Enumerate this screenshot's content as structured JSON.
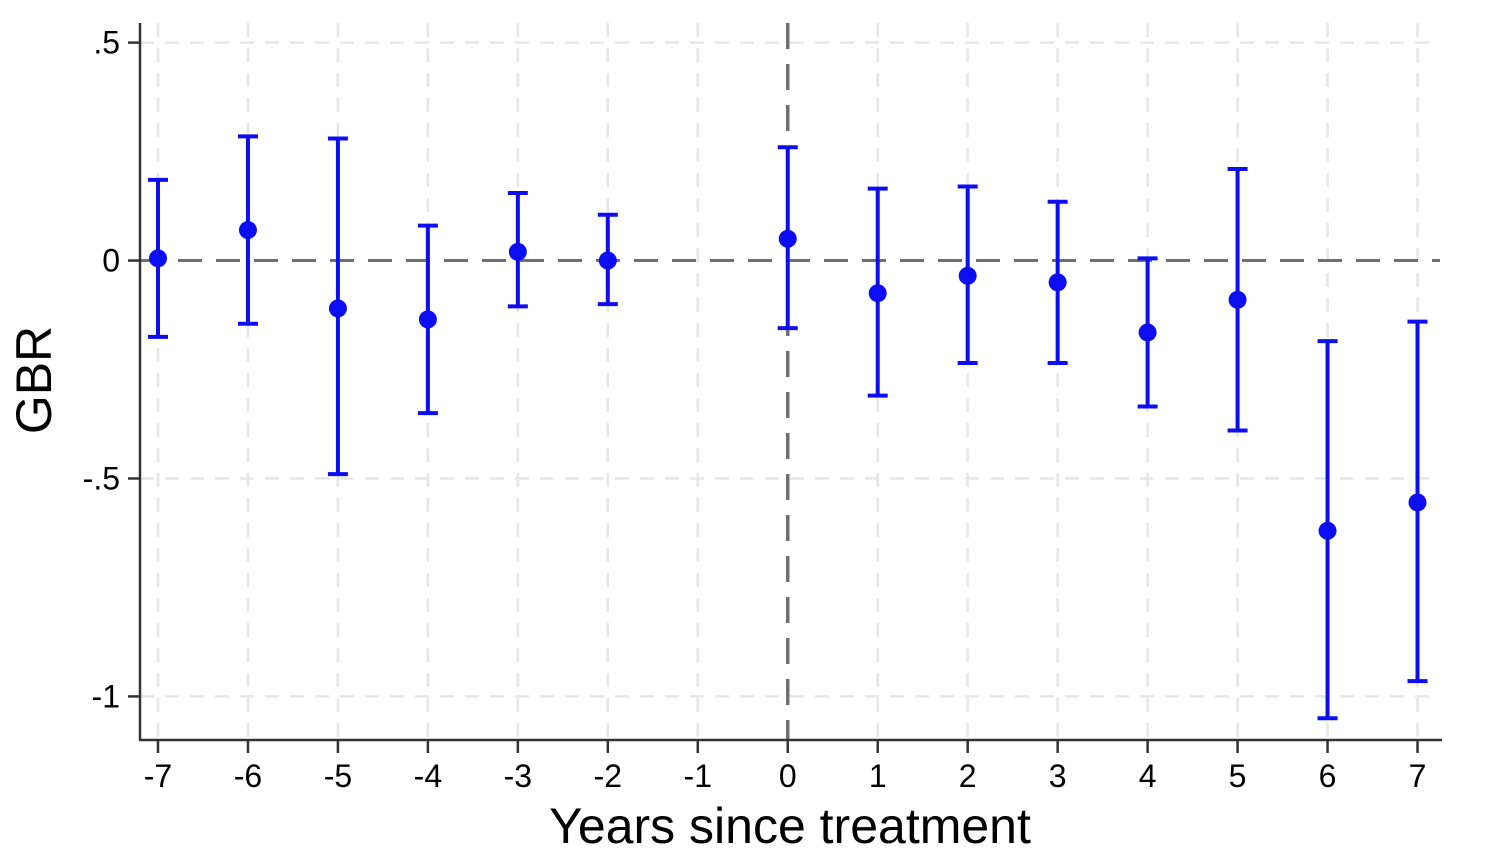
{
  "chart_data": {
    "type": "scatter",
    "subtype": "event-study-coefficient-plot",
    "title": "",
    "xlabel": "Years since treatment",
    "ylabel": "GBR",
    "xlim": [
      -7.2,
      7.25
    ],
    "ylim": [
      -1.1,
      0.545
    ],
    "x_ticks": [
      -7,
      -6,
      -5,
      -4,
      -3,
      -2,
      -1,
      0,
      1,
      2,
      3,
      4,
      5,
      6,
      7
    ],
    "x_tick_labels": [
      "-7",
      "-6",
      "-5",
      "-4",
      "-3",
      "-2",
      "-1",
      "0",
      "1",
      "2",
      "3",
      "4",
      "5",
      "6",
      "7"
    ],
    "y_ticks": [
      0.5,
      0,
      -0.5,
      -1
    ],
    "y_tick_labels": [
      ".5",
      "0",
      "-.5",
      "-1"
    ],
    "grid": true,
    "legend": "none",
    "reference_period": -1,
    "reference_lines": {
      "horizontal_y": 0,
      "vertical_x": 0
    },
    "series": [
      {
        "name": "GBR estimate with 95% CI",
        "marker": "circle",
        "points": [
          {
            "x": -7,
            "y": 0.005,
            "ci_low": -0.175,
            "ci_high": 0.185
          },
          {
            "x": -6,
            "y": 0.07,
            "ci_low": -0.145,
            "ci_high": 0.285
          },
          {
            "x": -5,
            "y": -0.11,
            "ci_low": -0.49,
            "ci_high": 0.28
          },
          {
            "x": -4,
            "y": -0.135,
            "ci_low": -0.35,
            "ci_high": 0.08
          },
          {
            "x": -3,
            "y": 0.02,
            "ci_low": -0.105,
            "ci_high": 0.155
          },
          {
            "x": -2,
            "y": 0.0,
            "ci_low": -0.1,
            "ci_high": 0.105
          },
          {
            "x": 0,
            "y": 0.05,
            "ci_low": -0.155,
            "ci_high": 0.26
          },
          {
            "x": 1,
            "y": -0.075,
            "ci_low": -0.31,
            "ci_high": 0.165
          },
          {
            "x": 2,
            "y": -0.035,
            "ci_low": -0.235,
            "ci_high": 0.17
          },
          {
            "x": 3,
            "y": -0.05,
            "ci_low": -0.235,
            "ci_high": 0.135
          },
          {
            "x": 4,
            "y": -0.165,
            "ci_low": -0.335,
            "ci_high": 0.005
          },
          {
            "x": 5,
            "y": -0.09,
            "ci_low": -0.39,
            "ci_high": 0.21
          },
          {
            "x": 6,
            "y": -0.62,
            "ci_low": -1.05,
            "ci_high": -0.185
          },
          {
            "x": 7,
            "y": -0.555,
            "ci_low": -0.965,
            "ci_high": -0.14
          }
        ]
      }
    ],
    "colors": {
      "marker": "#0d0df2",
      "reference_line": "#6f6f6f",
      "gridline": "#e6e6e6",
      "axis": "#333333",
      "text": "#000000",
      "background": "#ffffff"
    }
  }
}
